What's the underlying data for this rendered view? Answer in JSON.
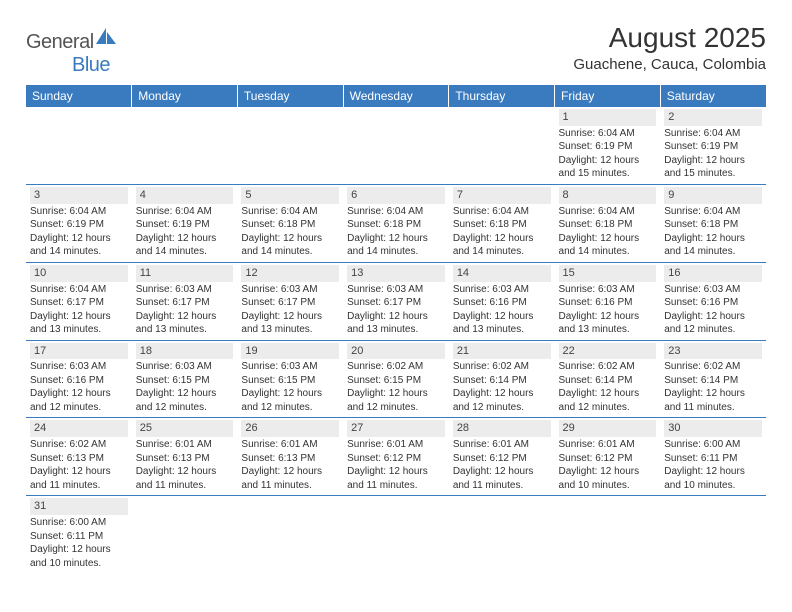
{
  "logo": {
    "general": "General",
    "blue": "Blue"
  },
  "title": "August 2025",
  "location": "Guachene, Cauca, Colombia",
  "colors": {
    "header_bg": "#3a7bbf",
    "header_text": "#ffffff",
    "daynum_bg": "#ececec",
    "cell_border": "#3a7bbf",
    "text": "#333333"
  },
  "weekdays": [
    "Sunday",
    "Monday",
    "Tuesday",
    "Wednesday",
    "Thursday",
    "Friday",
    "Saturday"
  ],
  "weeks": [
    [
      null,
      null,
      null,
      null,
      null,
      {
        "day": "1",
        "sunrise": "Sunrise: 6:04 AM",
        "sunset": "Sunset: 6:19 PM",
        "daylight": "Daylight: 12 hours and 15 minutes."
      },
      {
        "day": "2",
        "sunrise": "Sunrise: 6:04 AM",
        "sunset": "Sunset: 6:19 PM",
        "daylight": "Daylight: 12 hours and 15 minutes."
      }
    ],
    [
      {
        "day": "3",
        "sunrise": "Sunrise: 6:04 AM",
        "sunset": "Sunset: 6:19 PM",
        "daylight": "Daylight: 12 hours and 14 minutes."
      },
      {
        "day": "4",
        "sunrise": "Sunrise: 6:04 AM",
        "sunset": "Sunset: 6:19 PM",
        "daylight": "Daylight: 12 hours and 14 minutes."
      },
      {
        "day": "5",
        "sunrise": "Sunrise: 6:04 AM",
        "sunset": "Sunset: 6:18 PM",
        "daylight": "Daylight: 12 hours and 14 minutes."
      },
      {
        "day": "6",
        "sunrise": "Sunrise: 6:04 AM",
        "sunset": "Sunset: 6:18 PM",
        "daylight": "Daylight: 12 hours and 14 minutes."
      },
      {
        "day": "7",
        "sunrise": "Sunrise: 6:04 AM",
        "sunset": "Sunset: 6:18 PM",
        "daylight": "Daylight: 12 hours and 14 minutes."
      },
      {
        "day": "8",
        "sunrise": "Sunrise: 6:04 AM",
        "sunset": "Sunset: 6:18 PM",
        "daylight": "Daylight: 12 hours and 14 minutes."
      },
      {
        "day": "9",
        "sunrise": "Sunrise: 6:04 AM",
        "sunset": "Sunset: 6:18 PM",
        "daylight": "Daylight: 12 hours and 14 minutes."
      }
    ],
    [
      {
        "day": "10",
        "sunrise": "Sunrise: 6:04 AM",
        "sunset": "Sunset: 6:17 PM",
        "daylight": "Daylight: 12 hours and 13 minutes."
      },
      {
        "day": "11",
        "sunrise": "Sunrise: 6:03 AM",
        "sunset": "Sunset: 6:17 PM",
        "daylight": "Daylight: 12 hours and 13 minutes."
      },
      {
        "day": "12",
        "sunrise": "Sunrise: 6:03 AM",
        "sunset": "Sunset: 6:17 PM",
        "daylight": "Daylight: 12 hours and 13 minutes."
      },
      {
        "day": "13",
        "sunrise": "Sunrise: 6:03 AM",
        "sunset": "Sunset: 6:17 PM",
        "daylight": "Daylight: 12 hours and 13 minutes."
      },
      {
        "day": "14",
        "sunrise": "Sunrise: 6:03 AM",
        "sunset": "Sunset: 6:16 PM",
        "daylight": "Daylight: 12 hours and 13 minutes."
      },
      {
        "day": "15",
        "sunrise": "Sunrise: 6:03 AM",
        "sunset": "Sunset: 6:16 PM",
        "daylight": "Daylight: 12 hours and 13 minutes."
      },
      {
        "day": "16",
        "sunrise": "Sunrise: 6:03 AM",
        "sunset": "Sunset: 6:16 PM",
        "daylight": "Daylight: 12 hours and 12 minutes."
      }
    ],
    [
      {
        "day": "17",
        "sunrise": "Sunrise: 6:03 AM",
        "sunset": "Sunset: 6:16 PM",
        "daylight": "Daylight: 12 hours and 12 minutes."
      },
      {
        "day": "18",
        "sunrise": "Sunrise: 6:03 AM",
        "sunset": "Sunset: 6:15 PM",
        "daylight": "Daylight: 12 hours and 12 minutes."
      },
      {
        "day": "19",
        "sunrise": "Sunrise: 6:03 AM",
        "sunset": "Sunset: 6:15 PM",
        "daylight": "Daylight: 12 hours and 12 minutes."
      },
      {
        "day": "20",
        "sunrise": "Sunrise: 6:02 AM",
        "sunset": "Sunset: 6:15 PM",
        "daylight": "Daylight: 12 hours and 12 minutes."
      },
      {
        "day": "21",
        "sunrise": "Sunrise: 6:02 AM",
        "sunset": "Sunset: 6:14 PM",
        "daylight": "Daylight: 12 hours and 12 minutes."
      },
      {
        "day": "22",
        "sunrise": "Sunrise: 6:02 AM",
        "sunset": "Sunset: 6:14 PM",
        "daylight": "Daylight: 12 hours and 12 minutes."
      },
      {
        "day": "23",
        "sunrise": "Sunrise: 6:02 AM",
        "sunset": "Sunset: 6:14 PM",
        "daylight": "Daylight: 12 hours and 11 minutes."
      }
    ],
    [
      {
        "day": "24",
        "sunrise": "Sunrise: 6:02 AM",
        "sunset": "Sunset: 6:13 PM",
        "daylight": "Daylight: 12 hours and 11 minutes."
      },
      {
        "day": "25",
        "sunrise": "Sunrise: 6:01 AM",
        "sunset": "Sunset: 6:13 PM",
        "daylight": "Daylight: 12 hours and 11 minutes."
      },
      {
        "day": "26",
        "sunrise": "Sunrise: 6:01 AM",
        "sunset": "Sunset: 6:13 PM",
        "daylight": "Daylight: 12 hours and 11 minutes."
      },
      {
        "day": "27",
        "sunrise": "Sunrise: 6:01 AM",
        "sunset": "Sunset: 6:12 PM",
        "daylight": "Daylight: 12 hours and 11 minutes."
      },
      {
        "day": "28",
        "sunrise": "Sunrise: 6:01 AM",
        "sunset": "Sunset: 6:12 PM",
        "daylight": "Daylight: 12 hours and 11 minutes."
      },
      {
        "day": "29",
        "sunrise": "Sunrise: 6:01 AM",
        "sunset": "Sunset: 6:12 PM",
        "daylight": "Daylight: 12 hours and 10 minutes."
      },
      {
        "day": "30",
        "sunrise": "Sunrise: 6:00 AM",
        "sunset": "Sunset: 6:11 PM",
        "daylight": "Daylight: 12 hours and 10 minutes."
      }
    ],
    [
      {
        "day": "31",
        "sunrise": "Sunrise: 6:00 AM",
        "sunset": "Sunset: 6:11 PM",
        "daylight": "Daylight: 12 hours and 10 minutes."
      },
      null,
      null,
      null,
      null,
      null,
      null
    ]
  ]
}
